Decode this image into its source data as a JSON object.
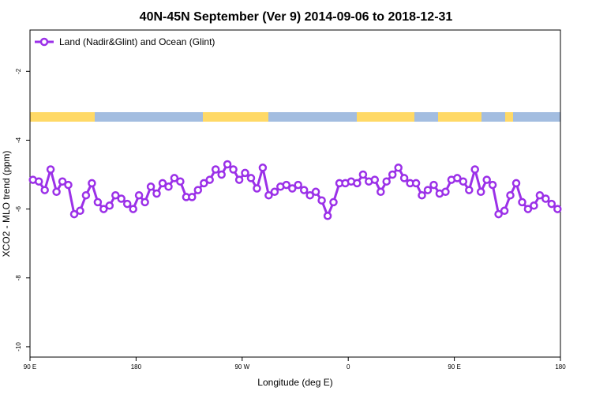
{
  "chart_data": {
    "type": "line",
    "title": "40N-45N September (Ver 9)   2014-09-06 to 2018-12-31",
    "xlabel": "Longitude (deg E)",
    "ylabel": "XCO2 - MLO trend (ppm)",
    "xlim": [
      90,
      540
    ],
    "ylim": [
      -10.3,
      -0.8
    ],
    "x_ticks": [
      {
        "value": 90,
        "label": "90 E"
      },
      {
        "value": 180,
        "label": "180"
      },
      {
        "value": 270,
        "label": "90 W"
      },
      {
        "value": 360,
        "label": "0"
      },
      {
        "value": 450,
        "label": "90 E"
      },
      {
        "value": 540,
        "label": "180"
      }
    ],
    "y_ticks": [
      {
        "value": -2,
        "label": "-2"
      },
      {
        "value": -4,
        "label": "-4"
      },
      {
        "value": -6,
        "label": "-6"
      },
      {
        "value": -8,
        "label": "-8"
      },
      {
        "value": -10,
        "label": "-10"
      }
    ],
    "legend_position": "top-left",
    "series": [
      {
        "name": "Land (Nadir&Glint) and Ocean (Glint)",
        "color": "#9b30e8",
        "x": [
          92.5,
          97.5,
          102.5,
          107.5,
          112.5,
          117.5,
          122.5,
          127.5,
          132.5,
          137.5,
          142.5,
          147.5,
          152.5,
          157.5,
          162.5,
          167.5,
          172.5,
          177.5,
          182.5,
          187.5,
          192.5,
          197.5,
          202.5,
          207.5,
          212.5,
          217.5,
          222.5,
          227.5,
          232.5,
          237.5,
          242.5,
          247.5,
          252.5,
          257.5,
          262.5,
          267.5,
          272.5,
          277.5,
          282.5,
          287.5,
          292.5,
          297.5,
          302.5,
          307.5,
          312.5,
          317.5,
          322.5,
          327.5,
          332.5,
          337.5,
          342.5,
          347.5,
          352.5,
          357.5,
          362.5,
          367.5,
          372.5,
          377.5,
          382.5,
          387.5,
          392.5,
          397.5,
          402.5,
          407.5,
          412.5,
          417.5,
          422.5,
          427.5,
          432.5,
          437.5,
          442.5,
          447.5,
          452.5,
          457.5,
          462.5,
          467.5,
          472.5,
          477.5,
          482.5,
          487.5,
          492.5,
          497.5,
          502.5,
          507.5,
          512.5,
          517.5,
          522.5,
          527.5,
          532.5,
          537.5
        ],
        "values": [
          -5.15,
          -5.2,
          -5.45,
          -4.85,
          -5.5,
          -5.2,
          -5.3,
          -6.15,
          -6.05,
          -5.6,
          -5.25,
          -5.8,
          -6.0,
          -5.9,
          -5.6,
          -5.7,
          -5.85,
          -6.0,
          -5.6,
          -5.8,
          -5.35,
          -5.55,
          -5.25,
          -5.35,
          -5.1,
          -5.2,
          -5.65,
          -5.65,
          -5.45,
          -5.25,
          -5.15,
          -4.85,
          -5.0,
          -4.7,
          -4.85,
          -5.15,
          -4.95,
          -5.1,
          -5.4,
          -4.8,
          -5.6,
          -5.5,
          -5.35,
          -5.3,
          -5.4,
          -5.3,
          -5.45,
          -5.6,
          -5.5,
          -5.75,
          -6.2,
          -5.8,
          -5.25,
          -5.25,
          -5.2,
          -5.25,
          -5.0,
          -5.2,
          -5.15,
          -5.5,
          -5.2,
          -5.0,
          -4.8,
          -5.1,
          -5.25,
          -5.25,
          -5.6,
          -5.45,
          -5.3,
          -5.55,
          -5.5,
          -5.15,
          -5.1,
          -5.2,
          -5.45,
          -4.85,
          -5.5,
          -5.15,
          -5.3,
          -6.15,
          -6.05,
          -5.6,
          -5.25,
          -5.8,
          -6.0,
          -5.9,
          -5.6,
          -5.7,
          -5.85,
          -6.0
        ]
      }
    ],
    "colors": {
      "land": "#ffd966",
      "ocean": "#a3bde0",
      "series": "#9b30e8"
    }
  }
}
